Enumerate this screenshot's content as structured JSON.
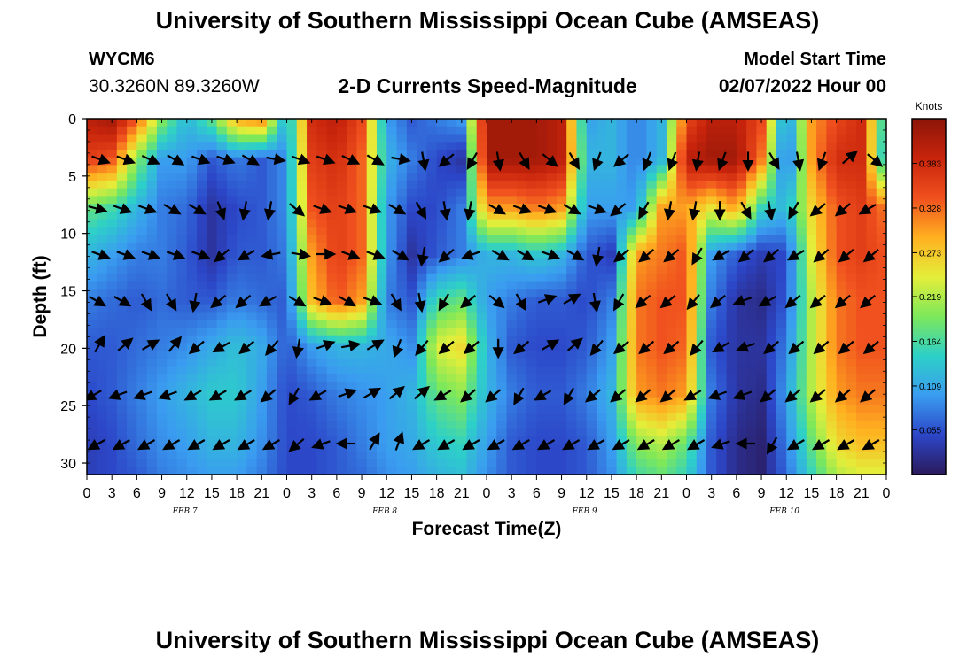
{
  "header": {
    "title": "University of Southern Mississippi Ocean Cube (AMSEAS)",
    "station_id": "WYCM6",
    "coords": "30.3260N  89.3260W",
    "model_start_label": "Model Start Time",
    "model_start_value": "02/07/2022 Hour 00"
  },
  "footer": {
    "title": "University of Southern Mississippi Ocean Cube (AMSEAS)"
  },
  "chart_data": {
    "type": "heatmap",
    "title": "2-D Currents Speed-Magnitude",
    "xlabel": "Forecast Time(Z)",
    "ylabel": "Depth (ft)",
    "x_range_hours": [
      0,
      96
    ],
    "x_tick_step_hours": 3,
    "x_tick_labels": [
      "0",
      "3",
      "6",
      "9",
      "12",
      "15",
      "18",
      "21",
      "0",
      "3",
      "6",
      "9",
      "12",
      "15",
      "18",
      "21",
      "0",
      "3",
      "6",
      "9",
      "12",
      "15",
      "18",
      "21",
      "0",
      "3",
      "6",
      "9",
      "12",
      "15",
      "18",
      "21",
      "0"
    ],
    "date_labels": [
      {
        "text": "FEB 7",
        "hour": 10.5
      },
      {
        "text": "FEB 8",
        "hour": 34.5
      },
      {
        "text": "FEB 9",
        "hour": 58.5
      },
      {
        "text": "FEB 10",
        "hour": 82.5
      }
    ],
    "y_range": [
      0,
      31
    ],
    "y_ticks": [
      0,
      5,
      10,
      15,
      20,
      25,
      30
    ],
    "colorbar": {
      "title": "Knots",
      "range": [
        0,
        0.438
      ],
      "ticks": [
        "0.383",
        "0.328",
        "0.273",
        "0.219",
        "0.164",
        "0.109",
        "0.055"
      ],
      "tick_values": [
        0.383,
        0.328,
        0.273,
        0.219,
        0.164,
        0.109,
        0.055
      ],
      "colors": [
        "#2b1a5c",
        "#2c46c8",
        "#3a9cf0",
        "#2dd0c8",
        "#7de85a",
        "#e4ee3a",
        "#ffb020",
        "#f0501e",
        "#c8240c",
        "#8c1508"
      ]
    },
    "vector_depths_ft": [
      3.5,
      7.8,
      11.8,
      15.8,
      19.8,
      24.0,
      28.3
    ],
    "vector_hours_base": [
      1,
      4,
      7,
      10,
      13,
      16,
      19,
      22,
      25,
      28,
      31,
      34,
      37,
      40,
      43,
      46,
      49,
      52,
      55,
      58,
      61,
      64,
      67,
      70,
      73,
      76,
      79,
      82,
      85,
      88,
      91,
      94
    ],
    "speed_grid_hours": [
      0,
      3,
      6,
      9,
      12,
      15,
      18,
      21,
      24,
      27,
      30,
      33,
      36,
      39,
      42,
      45,
      48,
      51,
      54,
      57,
      60,
      63,
      66,
      69,
      72,
      75,
      78,
      81,
      84,
      87,
      90,
      93,
      96
    ],
    "speed_grid_depths": [
      0,
      3.5,
      7.8,
      11.8,
      15.8,
      19.8,
      24.0,
      28.3,
      31
    ],
    "speed_grid": [
      [
        0.4,
        0.42,
        0.34,
        0.2,
        0.12,
        0.18,
        0.3,
        0.32,
        0.1,
        0.38,
        0.4,
        0.35,
        0.1,
        0.06,
        0.08,
        0.1,
        0.42,
        0.42,
        0.42,
        0.4,
        0.1,
        0.12,
        0.08,
        0.12,
        0.35,
        0.4,
        0.4,
        0.35,
        0.08,
        0.3,
        0.35,
        0.38,
        0.12
      ],
      [
        0.36,
        0.34,
        0.2,
        0.1,
        0.1,
        0.06,
        0.08,
        0.06,
        0.09,
        0.36,
        0.38,
        0.33,
        0.12,
        0.08,
        0.05,
        0.03,
        0.42,
        0.42,
        0.42,
        0.4,
        0.12,
        0.12,
        0.08,
        0.12,
        0.4,
        0.42,
        0.42,
        0.32,
        0.05,
        0.3,
        0.38,
        0.38,
        0.1
      ],
      [
        0.18,
        0.16,
        0.12,
        0.08,
        0.07,
        0.03,
        0.05,
        0.06,
        0.09,
        0.34,
        0.36,
        0.33,
        0.1,
        0.05,
        0.05,
        0.08,
        0.3,
        0.3,
        0.32,
        0.3,
        0.1,
        0.1,
        0.1,
        0.3,
        0.3,
        0.25,
        0.3,
        0.15,
        0.12,
        0.26,
        0.34,
        0.36,
        0.32
      ],
      [
        0.12,
        0.1,
        0.08,
        0.08,
        0.06,
        0.03,
        0.06,
        0.06,
        0.08,
        0.3,
        0.36,
        0.33,
        0.1,
        0.03,
        0.06,
        0.08,
        0.12,
        0.12,
        0.14,
        0.12,
        0.06,
        0.04,
        0.3,
        0.32,
        0.34,
        0.1,
        0.06,
        0.04,
        0.05,
        0.24,
        0.34,
        0.36,
        0.34
      ],
      [
        0.08,
        0.07,
        0.06,
        0.07,
        0.06,
        0.06,
        0.08,
        0.07,
        0.06,
        0.28,
        0.34,
        0.3,
        0.08,
        0.06,
        0.16,
        0.18,
        0.1,
        0.08,
        0.06,
        0.06,
        0.05,
        0.08,
        0.32,
        0.34,
        0.34,
        0.08,
        0.03,
        0.02,
        0.06,
        0.22,
        0.32,
        0.34,
        0.34
      ],
      [
        0.06,
        0.06,
        0.07,
        0.08,
        0.09,
        0.11,
        0.13,
        0.11,
        0.06,
        0.1,
        0.12,
        0.12,
        0.11,
        0.09,
        0.24,
        0.26,
        0.12,
        0.06,
        0.05,
        0.05,
        0.06,
        0.1,
        0.32,
        0.34,
        0.33,
        0.06,
        0.03,
        0.03,
        0.08,
        0.22,
        0.32,
        0.34,
        0.34
      ],
      [
        0.05,
        0.06,
        0.08,
        0.1,
        0.12,
        0.14,
        0.14,
        0.1,
        0.05,
        0.06,
        0.08,
        0.09,
        0.1,
        0.12,
        0.18,
        0.2,
        0.12,
        0.08,
        0.06,
        0.06,
        0.08,
        0.12,
        0.3,
        0.32,
        0.3,
        0.08,
        0.03,
        0.02,
        0.1,
        0.22,
        0.3,
        0.32,
        0.32
      ],
      [
        0.04,
        0.05,
        0.07,
        0.09,
        0.1,
        0.12,
        0.12,
        0.09,
        0.05,
        0.05,
        0.06,
        0.08,
        0.1,
        0.11,
        0.14,
        0.15,
        0.1,
        0.06,
        0.05,
        0.05,
        0.06,
        0.1,
        0.2,
        0.22,
        0.18,
        0.06,
        0.02,
        0.01,
        0.08,
        0.18,
        0.26,
        0.28,
        0.28
      ],
      [
        0.04,
        0.05,
        0.06,
        0.08,
        0.09,
        0.1,
        0.1,
        0.08,
        0.05,
        0.05,
        0.06,
        0.07,
        0.09,
        0.1,
        0.12,
        0.13,
        0.09,
        0.06,
        0.05,
        0.05,
        0.06,
        0.09,
        0.16,
        0.18,
        0.15,
        0.06,
        0.02,
        0.01,
        0.07,
        0.15,
        0.22,
        0.24,
        0.24
      ]
    ],
    "vector_angles_deg": [
      [
        20,
        20,
        25,
        30,
        20,
        20,
        30,
        10,
        20,
        20,
        25,
        30,
        10,
        80,
        140,
        120,
        80,
        60,
        40,
        60,
        110,
        140,
        110,
        110,
        100,
        110,
        90,
        60,
        80,
        110,
        -40,
        40
      ],
      [
        15,
        20,
        20,
        30,
        30,
        70,
        100,
        100,
        40,
        20,
        20,
        20,
        30,
        60,
        80,
        100,
        30,
        20,
        20,
        30,
        20,
        140,
        120,
        100,
        100,
        90,
        60,
        80,
        120,
        140,
        140,
        150
      ],
      [
        20,
        20,
        20,
        20,
        20,
        140,
        150,
        170,
        10,
        0,
        20,
        20,
        30,
        100,
        140,
        160,
        30,
        30,
        20,
        30,
        100,
        140,
        140,
        140,
        120,
        150,
        140,
        140,
        150,
        140,
        140,
        140
      ],
      [
        30,
        30,
        60,
        60,
        100,
        140,
        140,
        150,
        30,
        20,
        30,
        20,
        60,
        80,
        120,
        140,
        40,
        60,
        -20,
        -30,
        80,
        120,
        140,
        140,
        130,
        140,
        160,
        150,
        140,
        140,
        140,
        140
      ],
      [
        -60,
        -40,
        -30,
        -50,
        140,
        150,
        140,
        130,
        100,
        -20,
        -10,
        -30,
        110,
        130,
        140,
        140,
        90,
        140,
        -30,
        -40,
        130,
        140,
        140,
        140,
        130,
        150,
        160,
        140,
        140,
        140,
        140,
        140
      ],
      [
        150,
        160,
        160,
        160,
        150,
        150,
        150,
        140,
        120,
        150,
        -20,
        -30,
        -40,
        -40,
        150,
        140,
        140,
        120,
        150,
        120,
        140,
        140,
        140,
        140,
        150,
        160,
        160,
        140,
        140,
        140,
        140,
        140
      ],
      [
        150,
        150,
        150,
        150,
        150,
        150,
        150,
        150,
        140,
        160,
        180,
        -60,
        -70,
        150,
        150,
        150,
        150,
        150,
        150,
        150,
        150,
        150,
        150,
        150,
        150,
        160,
        180,
        120,
        150,
        150,
        150,
        150
      ]
    ]
  }
}
